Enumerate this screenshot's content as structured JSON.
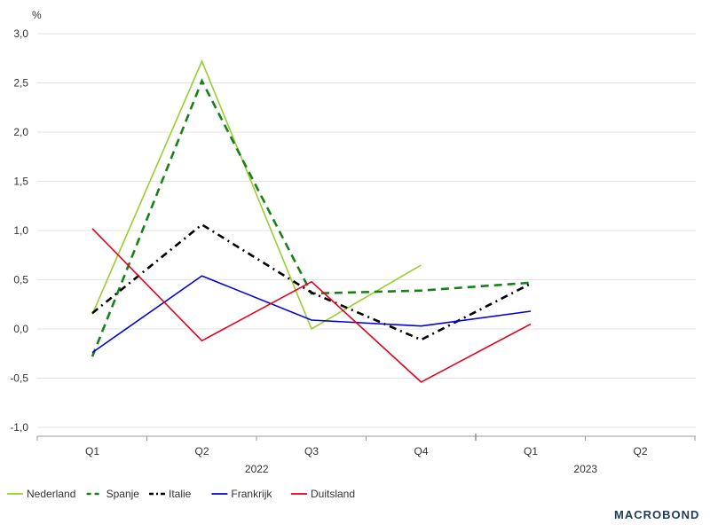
{
  "chart_data": {
    "type": "line",
    "unit_label": "%",
    "categories": [
      "Q1",
      "Q2",
      "Q3",
      "Q4",
      "Q1",
      "Q2"
    ],
    "years": [
      {
        "label": "2022",
        "from": 0,
        "to": 3
      },
      {
        "label": "2023",
        "from": 4,
        "to": 5
      }
    ],
    "ylim": [
      -1.0,
      3.0
    ],
    "yticks": [
      {
        "value": 3.0,
        "label": "3,0"
      },
      {
        "value": 2.5,
        "label": "2,5"
      },
      {
        "value": 2.0,
        "label": "2,0"
      },
      {
        "value": 1.5,
        "label": "1,5"
      },
      {
        "value": 1.0,
        "label": "1,0"
      },
      {
        "value": 0.5,
        "label": "0,5"
      },
      {
        "value": 0.0,
        "label": "0,0"
      },
      {
        "value": -0.5,
        "label": "-0,5"
      },
      {
        "value": -1.0,
        "label": "-1,0"
      }
    ],
    "grid": true,
    "legend_position": "bottom-left",
    "series": [
      {
        "name": "Nederland",
        "color": "#9acd32",
        "dash": "solid",
        "values": [
          0.15,
          2.72,
          0.0,
          0.65,
          null,
          null
        ]
      },
      {
        "name": "Spanje",
        "color": "#1a7f1a",
        "dash": "dash",
        "values": [
          -0.28,
          2.52,
          0.36,
          0.39,
          0.47,
          null
        ]
      },
      {
        "name": "Italie",
        "color": "#000000",
        "dash": "dashdot",
        "values": [
          0.16,
          1.06,
          0.37,
          -0.11,
          0.46,
          null
        ]
      },
      {
        "name": "Frankrijk",
        "color": "#0000dd",
        "dash": "solid",
        "values": [
          -0.24,
          0.54,
          0.09,
          0.03,
          0.18,
          null
        ]
      },
      {
        "name": "Duitsland",
        "color": "#e3001b",
        "dash": "solid",
        "values": [
          1.02,
          -0.12,
          0.48,
          -0.54,
          0.05,
          null
        ]
      }
    ]
  },
  "branding": {
    "logo_text": "MACROBOND",
    "logo_color": "#1f3a5f"
  }
}
